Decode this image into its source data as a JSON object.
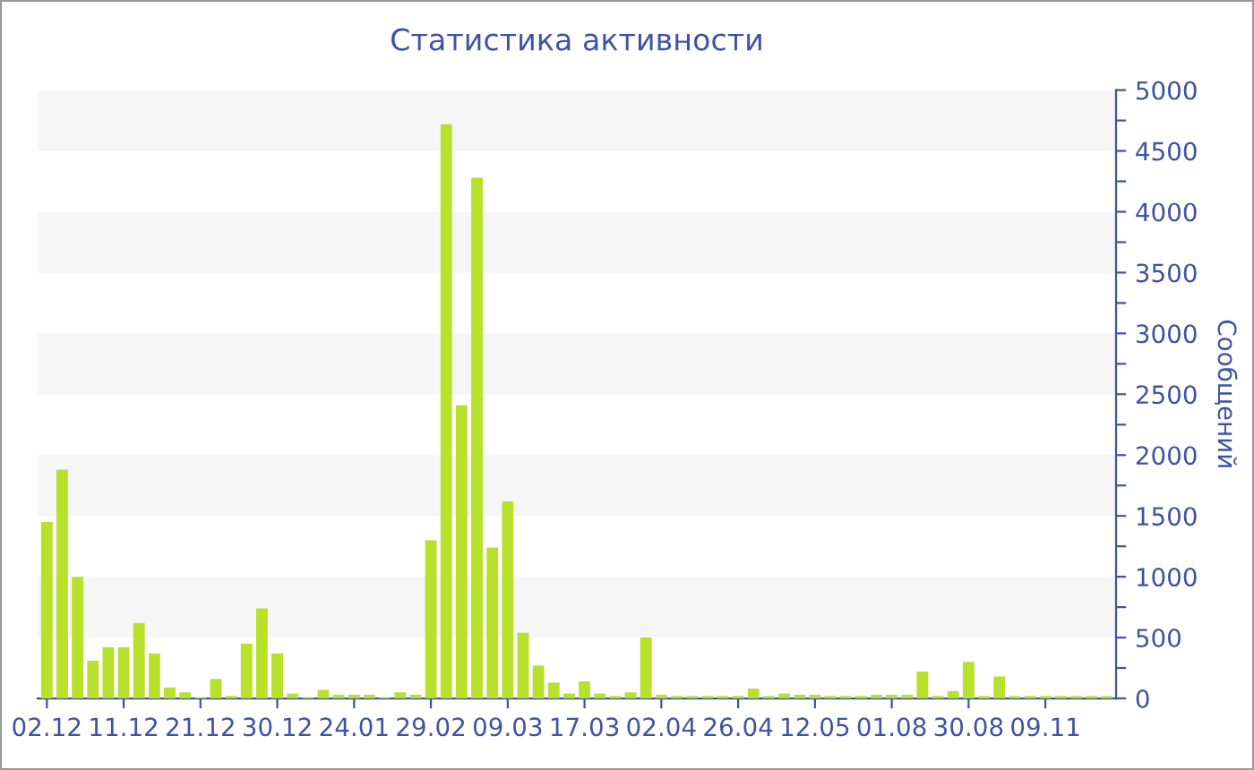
{
  "chart_data": {
    "type": "bar",
    "title": "Статистика активности",
    "ylabel": "Сообщений",
    "categories": [
      "02.12",
      null,
      null,
      null,
      null,
      "11.12",
      null,
      null,
      null,
      null,
      "21.12",
      null,
      null,
      null,
      null,
      "30.12",
      null,
      null,
      null,
      null,
      "24.01",
      null,
      null,
      null,
      null,
      "29.02",
      null,
      null,
      null,
      null,
      "09.03",
      null,
      null,
      null,
      null,
      "17.03",
      null,
      null,
      null,
      null,
      "02.04",
      null,
      null,
      null,
      null,
      "26.04",
      null,
      null,
      null,
      null,
      "12.05",
      null,
      null,
      null,
      null,
      "01.08",
      null,
      null,
      null,
      null,
      "30.08",
      null,
      null,
      null,
      null,
      "09.11",
      null,
      null,
      null,
      null
    ],
    "values": [
      1450,
      1880,
      1000,
      310,
      420,
      420,
      620,
      370,
      90,
      50,
      10,
      160,
      20,
      450,
      740,
      370,
      40,
      10,
      70,
      30,
      30,
      30,
      10,
      50,
      30,
      1300,
      4720,
      2410,
      4280,
      1240,
      1620,
      540,
      270,
      130,
      40,
      140,
      40,
      20,
      50,
      500,
      30,
      20,
      20,
      20,
      20,
      20,
      80,
      20,
      40,
      30,
      30,
      20,
      20,
      20,
      30,
      30,
      30,
      220,
      20,
      60,
      300,
      20,
      180,
      20,
      20,
      20,
      20,
      20,
      20,
      20
    ],
    "color": "#b8e12c",
    "ylim": [
      0,
      5000
    ],
    "yticks": [
      0,
      {
        "value": 250,
        "label": null
      },
      500,
      {
        "value": 750,
        "label": null
      },
      1000,
      {
        "value": 1250,
        "label": null
      },
      1500,
      {
        "value": 1750,
        "label": null
      },
      2000,
      {
        "value": 2250,
        "label": null
      },
      2500,
      {
        "value": 2750,
        "label": null
      },
      3000,
      {
        "value": 3250,
        "label": null
      },
      3500,
      {
        "value": 3750,
        "label": null
      },
      4000,
      {
        "value": 4250,
        "label": null
      },
      4500,
      {
        "value": 4750,
        "label": null
      },
      5000
    ],
    "bands": [
      {
        "axis": "y",
        "from": 500,
        "to": 1000,
        "color": "#f6f6f6"
      },
      {
        "axis": "y",
        "from": 1500,
        "to": 2000,
        "color": "#f6f6f6"
      },
      {
        "axis": "y",
        "from": 2500,
        "to": 3000,
        "color": "#f6f6f6"
      },
      {
        "axis": "y",
        "from": 3500,
        "to": 4000,
        "color": "#f6f6f6"
      },
      {
        "axis": "y",
        "from": 4500,
        "to": 5000,
        "color": "#f6f6f6"
      }
    ]
  }
}
